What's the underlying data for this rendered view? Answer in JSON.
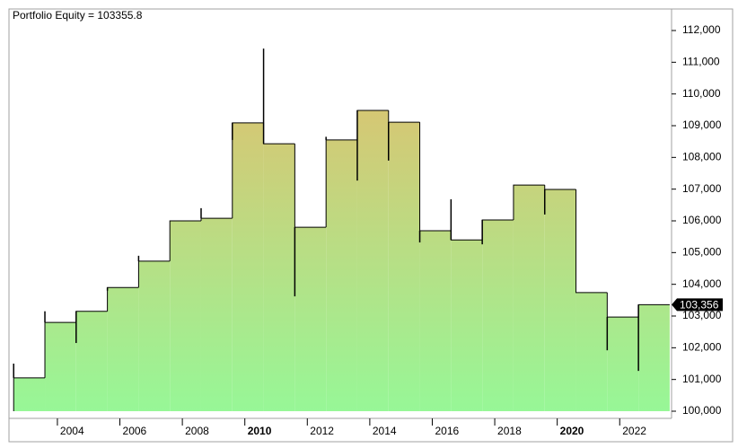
{
  "chart_data": {
    "type": "step-area",
    "title": "Portfolio Equity = 103355.8",
    "x": [
      2002.6,
      2003.6,
      2004.6,
      2005.6,
      2006.6,
      2007.6,
      2008.6,
      2009.6,
      2010.6,
      2011.6,
      2012.6,
      2013.6,
      2014.6,
      2015.6,
      2016.6,
      2017.6,
      2018.6,
      2019.6,
      2020.6,
      2021.6,
      2022.6
    ],
    "series": [
      {
        "name": "Portfolio Equity",
        "values": [
          101050,
          102800,
          103150,
          103900,
          104730,
          106000,
          106080,
          109090,
          108430,
          105800,
          108550,
          109480,
          109110,
          105690,
          105400,
          106030,
          107130,
          106990,
          103740,
          102970,
          103355.8
        ],
        "value_labels": [
          null,
          null,
          null,
          null,
          null,
          null,
          null,
          null,
          null,
          null,
          null,
          null,
          null,
          null,
          null,
          null,
          null,
          null,
          null,
          null,
          "103,356"
        ],
        "extremes": [
          101500,
          103150,
          102150,
          103800,
          104900,
          106000,
          106400,
          108550,
          111430,
          103620,
          108650,
          107270,
          107900,
          105320,
          106680,
          105260,
          107130,
          106200,
          103740,
          101920,
          101270
        ],
        "line_color": "#000000",
        "fill_top": "#ebb768",
        "fill_bottom": "#97f797"
      }
    ],
    "xlim": [
      2002.45,
      2023.66
    ],
    "xticks": [
      2004,
      2006,
      2008,
      2010,
      2012,
      2014,
      2016,
      2018,
      2020,
      2022
    ],
    "bold_xticks": [
      2010,
      2020
    ],
    "ylim": [
      99774,
      112679
    ],
    "yticks": [
      {
        "value": 100000,
        "label": "100,000"
      },
      {
        "value": 101000,
        "label": "101,000"
      },
      {
        "value": 102000,
        "label": "102,000"
      },
      {
        "value": 103000,
        "label": "103,000"
      },
      {
        "value": 104000,
        "label": "104,000"
      },
      {
        "value": 105000,
        "label": "105,000"
      },
      {
        "value": 106000,
        "label": "106,000"
      },
      {
        "value": 107000,
        "label": "107,000"
      },
      {
        "value": 108000,
        "label": "108,000"
      },
      {
        "value": 109000,
        "label": "109,000"
      },
      {
        "value": 110000,
        "label": "110,000"
      },
      {
        "value": 111000,
        "label": "111,000"
      },
      {
        "value": 112000,
        "label": "112,000"
      }
    ]
  }
}
